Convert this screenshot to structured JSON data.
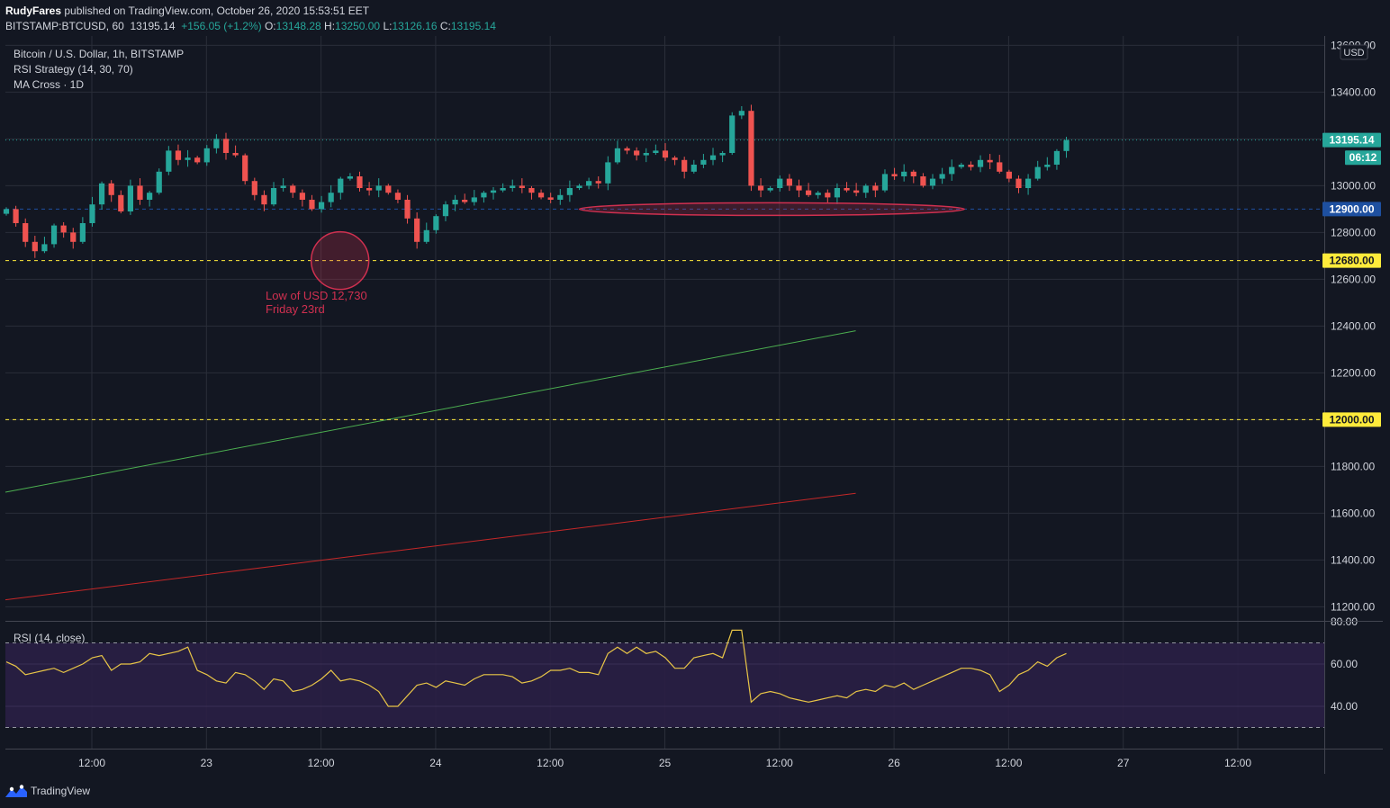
{
  "header": {
    "author": "RudyFares",
    "published_text": "published on TradingView.com, October 26, 2020 15:53:51 EET",
    "symbol": "BITSTAMP:BTCUSD, 60",
    "last": "13195.14",
    "change": "+156.05 (+1.2%)",
    "o_label": "O:",
    "o": "13148.28",
    "h_label": "H:",
    "h": "13250.00",
    "l_label": "L:",
    "l": "13126.16",
    "c_label": "C:",
    "c": "13195.14"
  },
  "legend": {
    "title": "Bitcoin / U.S. Dollar, 1h, BITSTAMP",
    "strategy": "RSI Strategy (14, 30, 70)",
    "ma": "MA Cross · 1D",
    "rsi": "RSI (14, close)"
  },
  "annotation": {
    "line1": "Low of USD 12,730",
    "line2": "Friday 23rd"
  },
  "currency": "USD",
  "footer": {
    "brand": "TradingView"
  },
  "colors": {
    "background": "#131722",
    "grid": "#2a2e39",
    "up": "#26a69a",
    "down": "#ef5350",
    "ma_fast": "#4caf50",
    "ma_slow": "#c62828",
    "rsi_line": "#e8c547",
    "rsi_band": "#2a1f45",
    "yellow_level": "#ffeb3b",
    "blue_level": "#1e50a0",
    "annotation": "#d03050"
  },
  "chart_data": [
    {
      "type": "candlestick",
      "title": "Bitcoin / U.S. Dollar, 1h, BITSTAMP",
      "y_axis_label": "USD",
      "ylim": [
        11140,
        13640
      ],
      "y_ticks": [
        "11200.00",
        "11400.00",
        "11600.00",
        "11800.00",
        "12000.00",
        "12200.00",
        "12400.00",
        "12600.00",
        "12800.00",
        "13000.00",
        "13200.00",
        "13400.00",
        "13600.00"
      ],
      "x_ticks": [
        "12:00",
        "23",
        "12:00",
        "24",
        "12:00",
        "25",
        "12:00",
        "26",
        "12:00",
        "27",
        "12:00"
      ],
      "price_labels": [
        {
          "value": 13195.14,
          "text": "13195.14",
          "bg": "#26a69a"
        },
        {
          "value": 13120,
          "text": "06:12",
          "bg": "#26a69a"
        },
        {
          "value": 12900,
          "text": "12900.00",
          "bg": "#1e50a0"
        },
        {
          "value": 12680,
          "text": "12680.00",
          "bg": "#ffeb3b"
        },
        {
          "value": 12000,
          "text": "12000.00",
          "bg": "#ffeb3b"
        }
      ],
      "levels": [
        {
          "value": 13195.14,
          "style": "dotted",
          "color": "#26a69a"
        },
        {
          "value": 12900,
          "style": "dashed",
          "color": "#1e50a0"
        },
        {
          "value": 12680,
          "style": "dashed",
          "color": "#ffeb3b"
        },
        {
          "value": 12000,
          "style": "dashed",
          "color": "#ffeb3b"
        }
      ],
      "candles_start_date": "2020-10-22 08:00",
      "candle_interval": "1h",
      "closes": [
        12900,
        12840,
        12760,
        12720,
        12750,
        12830,
        12800,
        12760,
        12840,
        12920,
        13010,
        12960,
        12890,
        13000,
        12940,
        12970,
        13060,
        13150,
        13110,
        13120,
        13100,
        13160,
        13200,
        13140,
        13130,
        13020,
        12960,
        12920,
        12990,
        13000,
        12970,
        12940,
        12900,
        12930,
        12970,
        13030,
        13040,
        12990,
        12980,
        13000,
        12970,
        12940,
        12860,
        12760,
        12810,
        12870,
        12920,
        12940,
        12930,
        12950,
        12970,
        12980,
        12990,
        13000,
        12990,
        12970,
        12950,
        12940,
        12960,
        12990,
        13000,
        13020,
        13010,
        13100,
        13160,
        13150,
        13130,
        13140,
        13150,
        13120,
        13110,
        13060,
        13090,
        13110,
        13130,
        13140,
        13300,
        13320,
        13000,
        12980,
        12990,
        13030,
        13000,
        12980,
        12960,
        12970,
        12950,
        12990,
        12980,
        12970,
        13000,
        12980,
        13050,
        13040,
        13060,
        13040,
        13000,
        13030,
        13050,
        13080,
        13090,
        13080,
        13110,
        13100,
        13060,
        13030,
        12990,
        13030,
        13080,
        13090,
        13148.28,
        13195.14
      ],
      "ma_fast": {
        "start": 11690,
        "end": 12380,
        "end_date": "2020-10-26 00:00"
      },
      "ma_slow": {
        "start": 11230,
        "end": 11685,
        "end_date": "2020-10-26 00:00"
      },
      "annotations": [
        {
          "shape": "circle",
          "date": "2020-10-23 18:00",
          "value": 12680
        },
        {
          "shape": "ellipse",
          "from_date": "2020-10-24 20:00",
          "to_date": "2020-10-26 11:00",
          "value": 12900
        }
      ]
    },
    {
      "type": "line",
      "title": "RSI (14, close)",
      "ylim": [
        20,
        80
      ],
      "y_ticks": [
        "40.00",
        "60.00",
        "80.00"
      ],
      "bands": [
        30,
        70
      ],
      "values": [
        61,
        59,
        55,
        56,
        57,
        58,
        56,
        58,
        60,
        63,
        64,
        57,
        60,
        60,
        61,
        65,
        64,
        65,
        66,
        68,
        57,
        55,
        52,
        51,
        56,
        55,
        52,
        48,
        53,
        52,
        47,
        48,
        50,
        53,
        57,
        52,
        53,
        52,
        50,
        47,
        40,
        40,
        45,
        50,
        51,
        49,
        52,
        51,
        50,
        53,
        55,
        55,
        55,
        54,
        51,
        52,
        54,
        57,
        57,
        58,
        56,
        56,
        55,
        65,
        68,
        65,
        68,
        65,
        66,
        63,
        58,
        58,
        63,
        64,
        65,
        63,
        76,
        76,
        42,
        46,
        47,
        46,
        44,
        43,
        42,
        43,
        44,
        45,
        44,
        47,
        48,
        47,
        50,
        49,
        51,
        48,
        50,
        52,
        54,
        56,
        58,
        58,
        57,
        55,
        47,
        50,
        55,
        57,
        61,
        59,
        63,
        65
      ]
    }
  ]
}
